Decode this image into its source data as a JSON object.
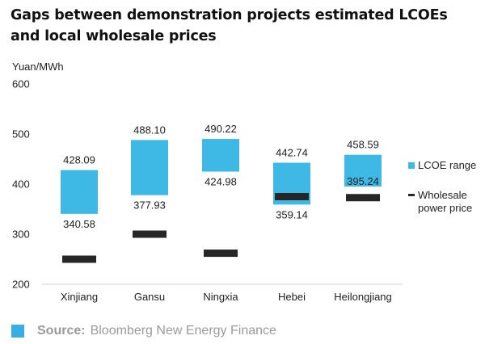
{
  "title": "Gaps between demonstration projects estimated LCOEs and local wholesale prices",
  "footer": {
    "source_label": "Source:",
    "source_text": "Bloomberg New Energy Finance"
  },
  "colors": {
    "lcoe": "#3eb8e5",
    "wholesale": "#262626",
    "source_square": "#3aaee3"
  },
  "chart_data": {
    "type": "bar",
    "title": "Gaps between demonstration projects estimated LCOEs and local wholesale prices",
    "ylabel": "Yuan/MWh",
    "ylim": [
      200,
      600
    ],
    "yticks": [
      200,
      300,
      400,
      500,
      600
    ],
    "grid": false,
    "legend_placement": "right",
    "categories": [
      "Xinjiang",
      "Gansu",
      "Ningxia",
      "Hebei",
      "Heilongjiang"
    ],
    "series": [
      {
        "name": "LCOE range",
        "kind": "floating-range",
        "low": [
          340.58,
          377.93,
          424.98,
          359.14,
          395.24
        ],
        "high": [
          428.09,
          488.1,
          490.22,
          442.74,
          458.59
        ],
        "low_labels": [
          "340.58",
          "377.93",
          "424.98",
          "359.14",
          "395.24"
        ],
        "high_labels": [
          "428.09",
          "488.10",
          "490.22",
          "442.74",
          "458.59"
        ]
      },
      {
        "name": "Wholesale power price",
        "kind": "marker",
        "values": [
          250,
          300,
          262,
          375,
          373
        ]
      }
    ],
    "legend": [
      {
        "label_lines": [
          "LCOE range"
        ]
      },
      {
        "label_lines": [
          "Wholesale",
          "power price"
        ]
      }
    ]
  }
}
